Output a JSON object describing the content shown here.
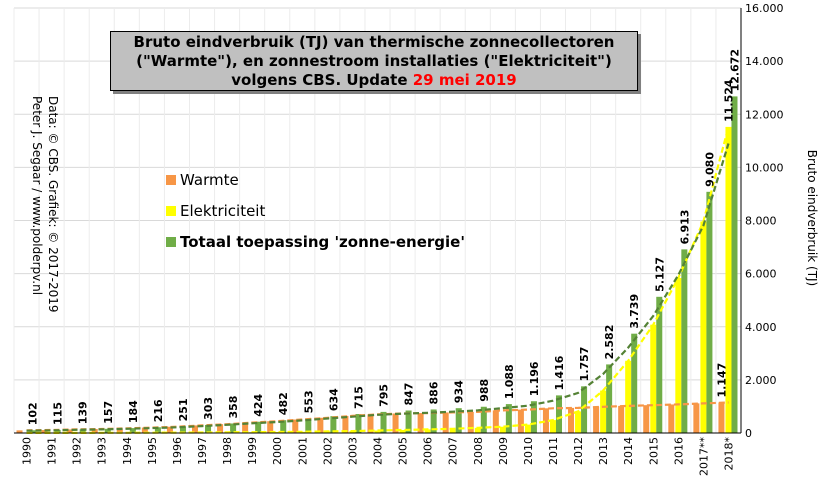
{
  "chart_data": {
    "type": "bar",
    "title_lines": [
      "Bruto eindverbruik  (TJ) van thermische  zonnecollectoren",
      "(\"Warmte\"), en zonnestroom installaties  (\"Elektriciteit\")",
      "volgens CBS. Update "
    ],
    "title_date": "29 mei 2019",
    "ylabel": "Bruto eindverbruik  (TJ)",
    "credit_lines": [
      "Data: © CBS. Grafiek: © 2017-2019",
      "Peter J. Segaar / www.polderpv.nl"
    ],
    "ylim": [
      0,
      16000
    ],
    "y_ticks": [
      "0",
      "2.000",
      "4.000",
      "6.000",
      "8.000",
      "10.000",
      "12.000",
      "14.000",
      "16.000"
    ],
    "categories": [
      "1990",
      "1991",
      "1992",
      "1993",
      "1994",
      "1995",
      "1996",
      "1997",
      "1998",
      "1999",
      "2000",
      "2001",
      "2002",
      "2003",
      "2004",
      "2005",
      "2006",
      "2007",
      "2008",
      "2009",
      "2010",
      "2011",
      "2012",
      "2013",
      "2014",
      "2015",
      "2016",
      "2017**",
      "2018*"
    ],
    "series": [
      {
        "name": "Warmte",
        "color": "#f79646",
        "values": [
          100,
          112,
          134,
          150,
          175,
          204,
          236,
          285,
          333,
          393,
          444,
          507,
          573,
          643,
          702,
          734,
          750,
          774,
          794,
          852,
          880,
          930,
          945,
          985,
          1020,
          1048,
          1075,
          1116,
          1147
        ]
      },
      {
        "name": "Elektriciteit",
        "color": "#ffff00",
        "values": [
          2,
          3,
          5,
          7,
          9,
          12,
          15,
          18,
          25,
          31,
          38,
          46,
          61,
          72,
          93,
          113,
          136,
          160,
          194,
          236,
          316,
          486,
          812,
          1597,
          2719,
          4079,
          5838,
          7964,
          11524
        ]
      },
      {
        "name": "Totaal toepassing 'zonne-energie'",
        "color": "#70ad47",
        "values": [
          102,
          115,
          139,
          157,
          184,
          216,
          251,
          303,
          358,
          424,
          482,
          553,
          634,
          715,
          795,
          847,
          886,
          934,
          988,
          1088,
          1196,
          1416,
          1757,
          2582,
          3739,
          5127,
          6913,
          9080,
          12672
        ]
      }
    ],
    "value_labels": [
      "102",
      "115",
      "139",
      "157",
      "184",
      "216",
      "251",
      "303",
      "358",
      "424",
      "482",
      "553",
      "634",
      "715",
      "795",
      "847",
      "886",
      "934",
      "988",
      "1.088",
      "1.196",
      "1.416",
      "1.757",
      "2.582",
      "3.739",
      "5.127",
      "6.913",
      "9.080",
      "12.672"
    ],
    "extra_labels": {
      "elektriciteit_2018": "11.524",
      "warmte_2018": "1.147"
    },
    "trendline_colors": [
      "#f79646",
      "#ffff00",
      "#548235"
    ],
    "legend_placement": "left-middle",
    "grid": true
  }
}
